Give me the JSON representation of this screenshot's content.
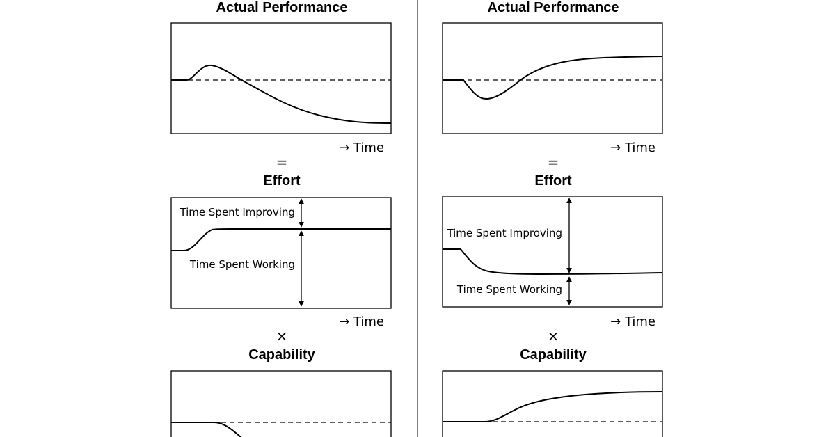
{
  "left": {
    "performance_title": "Actual Performance",
    "time_label_1": "→ Time",
    "op_equals": "=",
    "effort_title": "Effort",
    "improving_label": "Time Spent Improving",
    "working_label": "Time Spent Working",
    "time_label_2": "→ Time",
    "op_times": "×",
    "capability_title": "Capability"
  },
  "right": {
    "performance_title": "Actual Performance",
    "time_label_1": "→ Time",
    "op_equals": "=",
    "effort_title": "Effort",
    "improving_label": "Time Spent Improving",
    "working_label": "Time Spent Working",
    "time_label_2": "→ Time",
    "op_times": "×",
    "capability_title": "Capability"
  },
  "colors": {
    "ink": "#000000",
    "background": "#ffffff",
    "divider": "#555555"
  }
}
